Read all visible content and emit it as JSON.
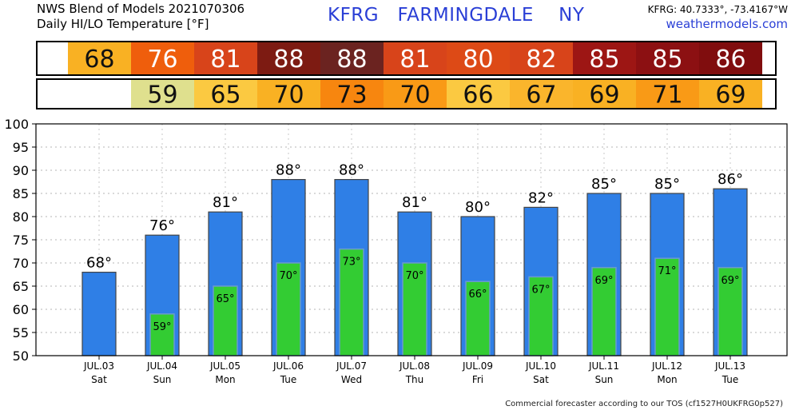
{
  "header": {
    "title_line1": "NWS Blend of Models 2021070306",
    "title_line2": "Daily HI/LO Temperature [°F]",
    "station": "KFRG   FARMINGDALE    NY",
    "coords": "KFRG: 40.7333°, -73.4167°W",
    "site": "weathermodels.com"
  },
  "footer": "Commercial forecaster according to our TOS (cf1527H0UKFRG0p527)",
  "colors": {
    "high_bar": "#2f7fe6",
    "low_bar": "#33cc33",
    "high_bar_edge": "#444444"
  },
  "chart_data": {
    "type": "bar",
    "title": "Daily HI/LO Temperature [°F]",
    "categories": [
      "JUL.03",
      "JUL.04",
      "JUL.05",
      "JUL.06",
      "JUL.07",
      "JUL.08",
      "JUL.09",
      "JUL.10",
      "JUL.11",
      "JUL.12",
      "JUL.13"
    ],
    "weekdays": [
      "Sat",
      "Sun",
      "Mon",
      "Tue",
      "Wed",
      "Thu",
      "Fri",
      "Sat",
      "Sun",
      "Mon",
      "Tue"
    ],
    "series": [
      {
        "name": "HI",
        "values": [
          68,
          76,
          81,
          88,
          88,
          81,
          80,
          82,
          85,
          85,
          86
        ]
      },
      {
        "name": "LO",
        "values": [
          null,
          59,
          65,
          70,
          73,
          70,
          66,
          67,
          69,
          71,
          69
        ]
      }
    ],
    "ylim": [
      50,
      100
    ],
    "yticks": [
      50,
      55,
      60,
      65,
      70,
      75,
      80,
      85,
      90,
      95,
      100
    ],
    "grid": true,
    "high_strip_colors": [
      "#f9b123",
      "#ef5e0c",
      "#d8441a",
      "#7d1b12",
      "#6b2320",
      "#d8441a",
      "#dd4a16",
      "#d8441a",
      "#9d1614",
      "#8c1012",
      "#800d0e"
    ],
    "low_strip_colors": [
      null,
      "#dfe08e",
      "#fbc941",
      "#f9b123",
      "#f7860f",
      "#f99a16",
      "#fbc941",
      "#fab52c",
      "#f9b123",
      "#f99a16",
      "#f9b123"
    ]
  }
}
